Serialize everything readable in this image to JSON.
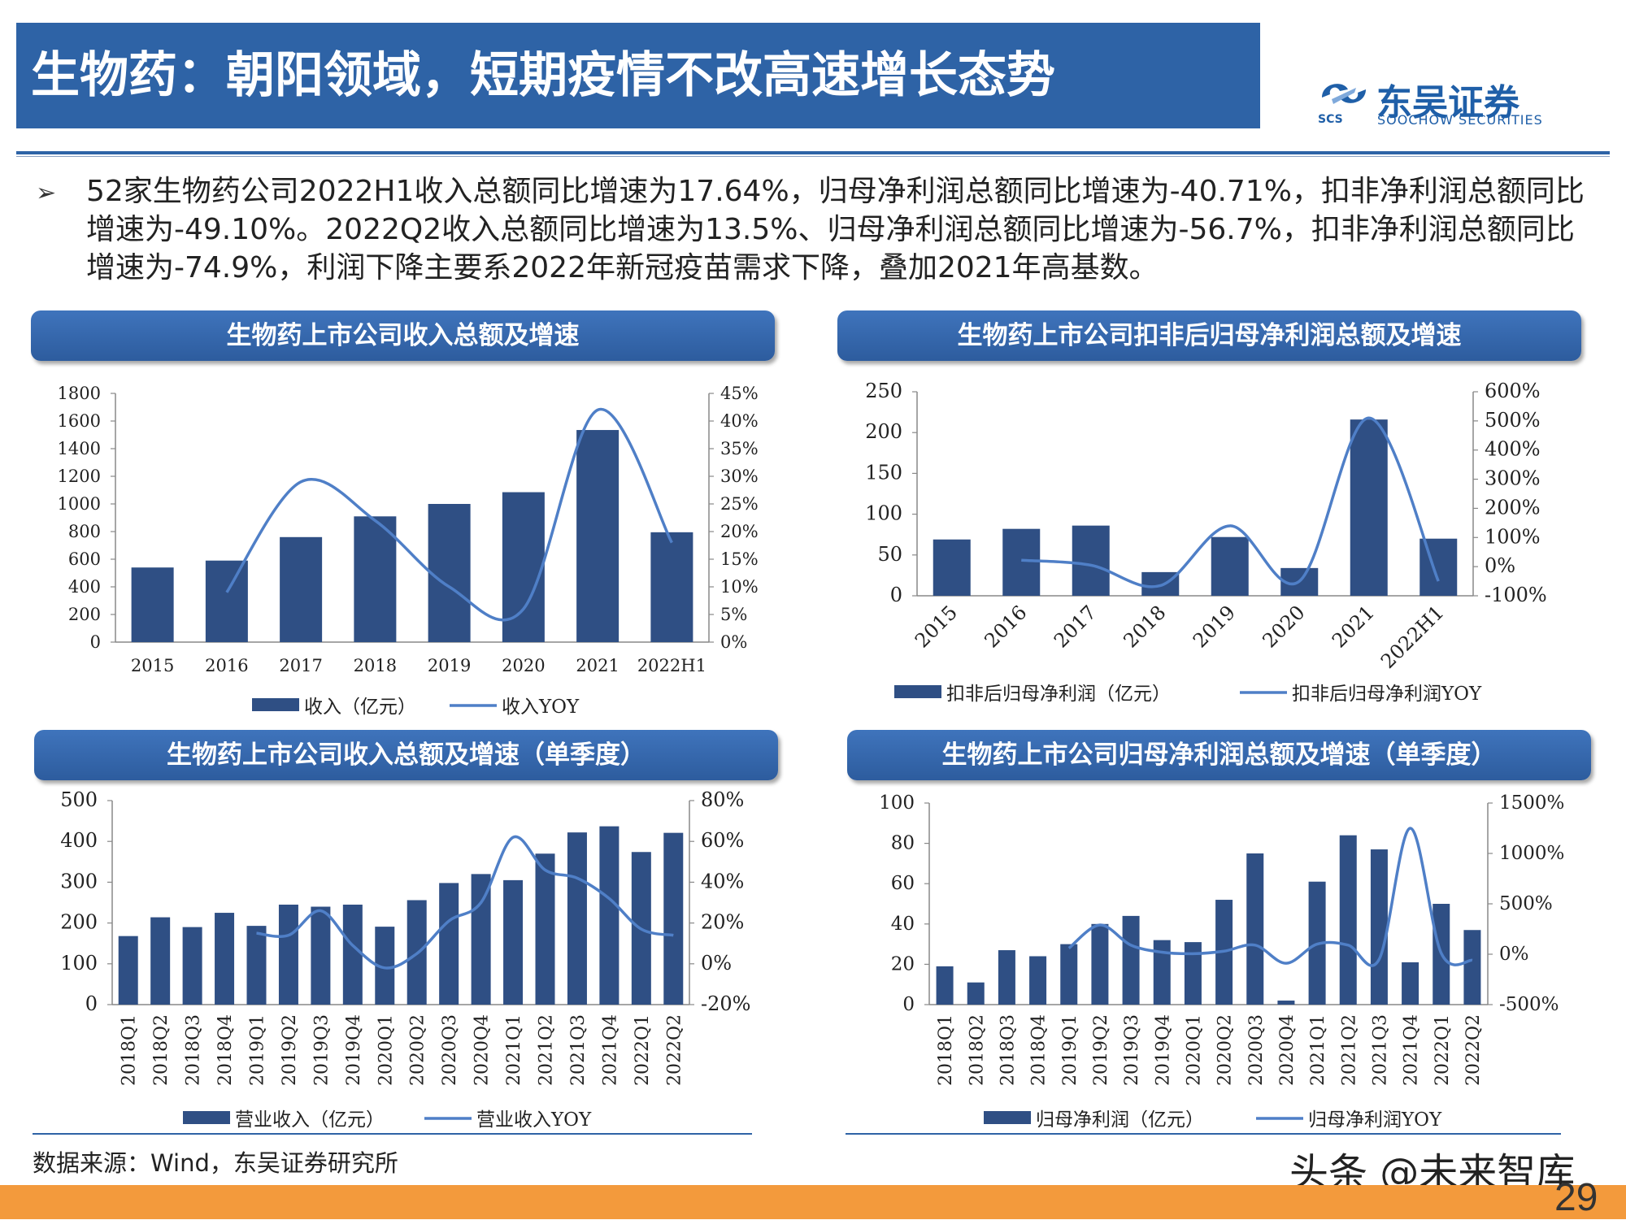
{
  "slide": {
    "title": "生物药：朝阳领域，短期疫情不改高速增长态势",
    "logo_cn": "东吴证券",
    "logo_en": "SOOCHOW SECURITIES",
    "logo_abbr": "SCS",
    "bullet": "52家生物药公司2022H1收入总额同比增速为17.64%，归母净利润总额同比增速为-40.71%，扣非净利润总额同比增速为-49.10%。2022Q2收入总额同比增速为13.5%、归母净利润总额同比增速为-56.7%，扣非净利润总额同比增速为-74.9%，利润下降主要系2022年新冠疫苗需求下降，叠加2021年高基数。",
    "source": "数据来源：Wind，东吴证券研究所",
    "watermark": "头条 @未来智库",
    "page_number": "29",
    "brand_color": "#2E63A6",
    "bar_color": "#2F4F84",
    "line_color": "#4F7FC7",
    "footer_color": "#F39A3C"
  },
  "chart_data": [
    {
      "id": "c1",
      "panel_title": "生物药上市公司收入总额及增速",
      "type": "bar",
      "categories": [
        "2015",
        "2016",
        "2017",
        "2018",
        "2019",
        "2020",
        "2021",
        "2022H1"
      ],
      "series": [
        {
          "name": "收入（亿元）",
          "type": "bar",
          "axis": "left",
          "values": [
            540,
            590,
            760,
            910,
            1000,
            1085,
            1535,
            795
          ]
        },
        {
          "name": "收入YOY",
          "type": "line",
          "axis": "right",
          "values": [
            null,
            0.09,
            0.29,
            0.22,
            0.1,
            0.06,
            0.42,
            0.18
          ]
        }
      ],
      "ylim_left": [
        0,
        1800
      ],
      "ytick_left": [
        0,
        200,
        400,
        600,
        800,
        1000,
        1200,
        1400,
        1600,
        1800
      ],
      "ylim_right": [
        0,
        0.45
      ],
      "ytick_right": [
        0,
        0.05,
        0.1,
        0.15,
        0.2,
        0.25,
        0.3,
        0.35,
        0.4,
        0.45
      ],
      "ytick_right_labels": [
        "0%",
        "5%",
        "10%",
        "15%",
        "20%",
        "25%",
        "30%",
        "35%",
        "40%",
        "45%"
      ],
      "legend_position": "bottom"
    },
    {
      "id": "c2",
      "panel_title": "生物药上市公司扣非后归母净利润总额及增速",
      "type": "bar",
      "categories": [
        "2015",
        "2016",
        "2017",
        "2018",
        "2019",
        "2020",
        "2021",
        "2022H1"
      ],
      "series": [
        {
          "name": "扣非后归母净利润（亿元）",
          "type": "bar",
          "axis": "left",
          "values": [
            69,
            82,
            86,
            29,
            72,
            34,
            216,
            70
          ]
        },
        {
          "name": "扣非后归母净利润YOY",
          "type": "line",
          "axis": "right",
          "values": [
            null,
            0.22,
            0.05,
            -0.65,
            1.4,
            -0.5,
            5.1,
            -0.5
          ]
        }
      ],
      "ylim_left": [
        0,
        250
      ],
      "ytick_left": [
        0,
        50,
        100,
        150,
        200,
        250
      ],
      "ylim_right": [
        -1,
        6
      ],
      "ytick_right": [
        -1,
        0,
        1,
        2,
        3,
        4,
        5,
        6
      ],
      "ytick_right_labels": [
        "-100%",
        "0%",
        "100%",
        "200%",
        "300%",
        "400%",
        "500%",
        "600%"
      ],
      "legend_position": "bottom"
    },
    {
      "id": "c3",
      "panel_title": "生物药上市公司收入总额及增速（单季度）",
      "type": "bar",
      "categories": [
        "2018Q1",
        "2018Q2",
        "2018Q3",
        "2018Q4",
        "2019Q1",
        "2019Q2",
        "2019Q3",
        "2019Q4",
        "2020Q1",
        "2020Q2",
        "2020Q3",
        "2020Q4",
        "2021Q1",
        "2021Q2",
        "2021Q3",
        "2021Q4",
        "2022Q1",
        "2022Q2"
      ],
      "series": [
        {
          "name": "营业收入（亿元）",
          "type": "bar",
          "axis": "left",
          "values": [
            168,
            214,
            190,
            225,
            193,
            245,
            240,
            245,
            191,
            256,
            298,
            320,
            305,
            370,
            422,
            437,
            374,
            421
          ]
        },
        {
          "name": "营业收入YOY",
          "type": "line",
          "axis": "right",
          "values": [
            null,
            null,
            null,
            null,
            0.15,
            0.14,
            0.26,
            0.09,
            -0.02,
            0.05,
            0.21,
            0.3,
            0.62,
            0.46,
            0.42,
            0.32,
            0.17,
            0.14
          ]
        }
      ],
      "ylim_left": [
        0,
        500
      ],
      "ytick_left": [
        0,
        100,
        200,
        300,
        400,
        500
      ],
      "ylim_right": [
        -0.2,
        0.8
      ],
      "ytick_right": [
        -0.2,
        0,
        0.2,
        0.4,
        0.6,
        0.8
      ],
      "ytick_right_labels": [
        "-20%",
        "0%",
        "20%",
        "40%",
        "60%",
        "80%"
      ],
      "legend_position": "bottom"
    },
    {
      "id": "c4",
      "panel_title": "生物药上市公司归母净利润总额及增速（单季度）",
      "type": "bar",
      "categories": [
        "2018Q1",
        "2018Q2",
        "2018Q3",
        "2018Q4",
        "2019Q1",
        "2019Q2",
        "2019Q3",
        "2019Q4",
        "2020Q1",
        "2020Q2",
        "2020Q3",
        "2020Q4",
        "2021Q1",
        "2021Q2",
        "2021Q3",
        "2021Q4",
        "2022Q1",
        "2022Q2"
      ],
      "series": [
        {
          "name": "归母净利润（亿元）",
          "type": "bar",
          "axis": "left",
          "values": [
            19,
            11,
            27,
            24,
            30,
            40,
            44,
            32,
            31,
            52,
            75,
            2,
            61,
            84,
            77,
            21,
            50,
            37
          ]
        },
        {
          "name": "归母净利润YOY",
          "type": "line",
          "axis": "right",
          "values": [
            null,
            null,
            null,
            null,
            0.6,
            2.9,
            0.9,
            0.2,
            0.05,
            0.3,
            0.9,
            -0.9,
            1.0,
            0.9,
            -0.5,
            12.5,
            0.1,
            -0.6
          ]
        }
      ],
      "ylim_left": [
        0,
        100
      ],
      "ytick_left": [
        0,
        20,
        40,
        60,
        80,
        100
      ],
      "ylim_right": [
        -5,
        15
      ],
      "ytick_right": [
        -5,
        0,
        5,
        10,
        15
      ],
      "ytick_right_labels": [
        "-500%",
        "0%",
        "500%",
        "1000%",
        "1500%"
      ],
      "legend_position": "bottom"
    }
  ]
}
